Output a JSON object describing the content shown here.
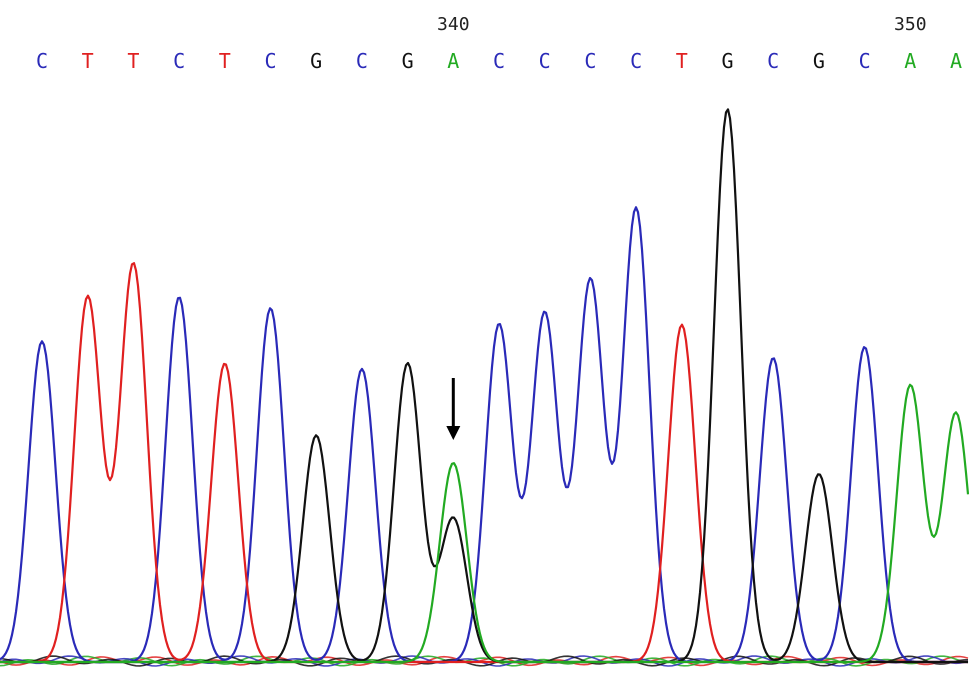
{
  "chart_data": {
    "type": "line",
    "title": "",
    "xlabel": "",
    "ylabel": "",
    "colors": {
      "A": "#22aa22",
      "C": "#2a2ab8",
      "G": "#111111",
      "T": "#e02020"
    },
    "position_labels": [
      {
        "position": 340,
        "text": "340"
      },
      {
        "position": 350,
        "text": "350"
      }
    ],
    "base_calls": [
      {
        "position": 331,
        "base": "C",
        "peak_height": 0.58
      },
      {
        "position": 332,
        "base": "T",
        "peak_height": 0.66
      },
      {
        "position": 333,
        "base": "T",
        "peak_height": 0.72
      },
      {
        "position": 334,
        "base": "C",
        "peak_height": 0.66
      },
      {
        "position": 335,
        "base": "T",
        "peak_height": 0.54
      },
      {
        "position": 336,
        "base": "C",
        "peak_height": 0.64
      },
      {
        "position": 337,
        "base": "G",
        "peak_height": 0.41
      },
      {
        "position": 338,
        "base": "C",
        "peak_height": 0.53
      },
      {
        "position": 339,
        "base": "G",
        "peak_height": 0.54
      },
      {
        "position": 340,
        "base": "A",
        "peak_height": 0.36
      },
      {
        "position": 341,
        "base": "C",
        "peak_height": 0.61
      },
      {
        "position": 342,
        "base": "C",
        "peak_height": 0.63
      },
      {
        "position": 343,
        "base": "C",
        "peak_height": 0.69
      },
      {
        "position": 344,
        "base": "C",
        "peak_height": 0.82
      },
      {
        "position": 345,
        "base": "T",
        "peak_height": 0.61
      },
      {
        "position": 346,
        "base": "G",
        "peak_height": 1.0
      },
      {
        "position": 347,
        "base": "C",
        "peak_height": 0.55
      },
      {
        "position": 348,
        "base": "G",
        "peak_height": 0.34
      },
      {
        "position": 349,
        "base": "C",
        "peak_height": 0.57
      },
      {
        "position": 350,
        "base": "A",
        "peak_height": 0.5
      },
      {
        "position": 351,
        "base": "A",
        "peak_height": 0.45
      }
    ],
    "secondary_peaks": [
      {
        "position": 340,
        "base": "G",
        "peak_height": 0.26
      }
    ],
    "annotation": {
      "type": "arrow",
      "position": 340,
      "direction": "down"
    }
  }
}
